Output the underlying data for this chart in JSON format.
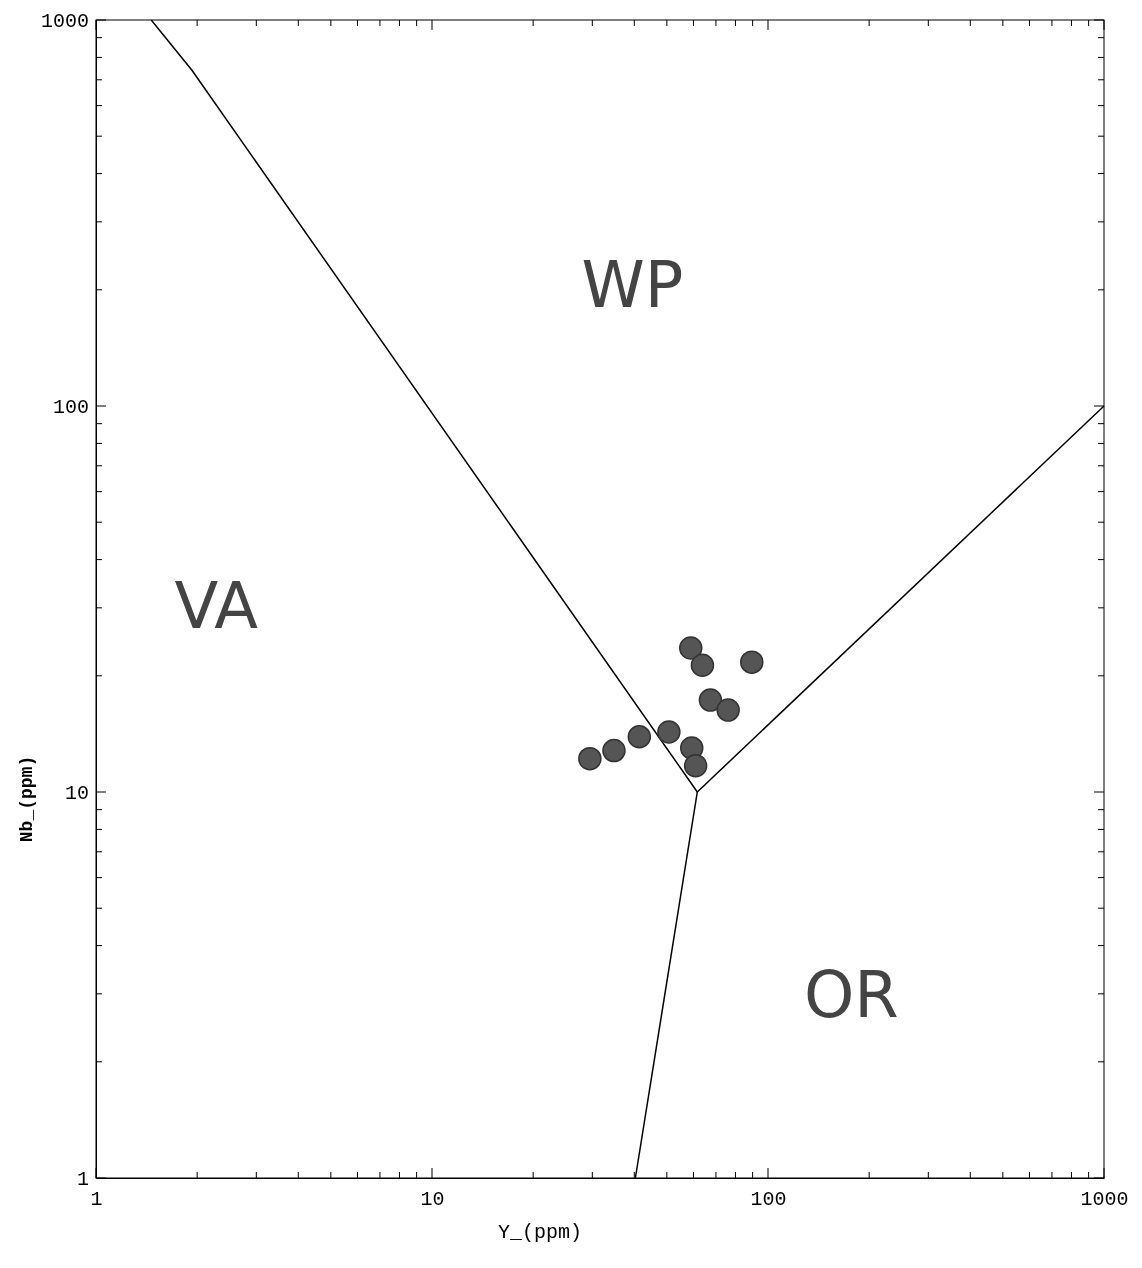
{
  "chart_data": {
    "type": "scatter",
    "xlabel": "Y_(ppm)",
    "ylabel": "Nb_(ppm)",
    "log": "xy",
    "xlim": [
      1,
      1000
    ],
    "ylim": [
      1,
      1000
    ],
    "xticks": [
      1,
      {
        "value": 2,
        "label": null
      },
      {
        "value": 3,
        "label": null
      },
      {
        "value": 4,
        "label": null
      },
      {
        "value": 5,
        "label": null
      },
      {
        "value": 6,
        "label": null
      },
      {
        "value": 7,
        "label": null
      },
      {
        "value": 8,
        "label": null
      },
      {
        "value": 9,
        "label": null
      },
      10,
      {
        "value": 20,
        "label": null
      },
      {
        "value": 30,
        "label": null
      },
      {
        "value": 40,
        "label": null
      },
      {
        "value": 50,
        "label": null
      },
      {
        "value": 60,
        "label": null
      },
      {
        "value": 70,
        "label": null
      },
      {
        "value": 80,
        "label": null
      },
      {
        "value": 90,
        "label": null
      },
      100,
      {
        "value": 200,
        "label": null
      },
      {
        "value": 300,
        "label": null
      },
      {
        "value": 400,
        "label": null
      },
      {
        "value": 500,
        "label": null
      },
      {
        "value": 600,
        "label": null
      },
      {
        "value": 700,
        "label": null
      },
      {
        "value": 800,
        "label": null
      },
      {
        "value": 900,
        "label": null
      },
      1000
    ],
    "yticks": [
      1,
      {
        "value": 2,
        "label": null
      },
      {
        "value": 3,
        "label": null
      },
      {
        "value": 4,
        "label": null
      },
      {
        "value": 5,
        "label": null
      },
      {
        "value": 6,
        "label": null
      },
      {
        "value": 7,
        "label": null
      },
      {
        "value": 8,
        "label": null
      },
      {
        "value": 9,
        "label": null
      },
      10,
      {
        "value": 20,
        "label": null
      },
      {
        "value": 30,
        "label": null
      },
      {
        "value": 40,
        "label": null
      },
      {
        "value": 50,
        "label": null
      },
      {
        "value": 60,
        "label": null
      },
      {
        "value": 70,
        "label": null
      },
      {
        "value": 80,
        "label": null
      },
      {
        "value": 90,
        "label": null
      },
      100,
      {
        "value": 200,
        "label": null
      },
      {
        "value": 300,
        "label": null
      },
      {
        "value": 400,
        "label": null
      },
      {
        "value": 500,
        "label": null
      },
      {
        "value": 600,
        "label": null
      },
      {
        "value": 700,
        "label": null
      },
      {
        "value": 800,
        "label": null
      },
      {
        "value": 900,
        "label": null
      },
      1000
    ],
    "grid": false,
    "series": [
      {
        "color": "#555555",
        "marker": "circle",
        "x": [
          29.5,
          34.8,
          41.4,
          50.7,
          58.9,
          63.8,
          89.5,
          67.4,
          76.1,
          59.3,
          60.9
        ],
        "values": [
          12.2,
          12.8,
          13.9,
          14.3,
          23.6,
          21.3,
          21.7,
          17.3,
          16.3,
          13.0,
          11.7
        ]
      },
      {
        "type": "line",
        "color": "#000000",
        "marker": "none",
        "line_style": "solid",
        "x": [
          1.46,
          1.93,
          61.6
        ],
        "values": [
          1000,
          741,
          10
        ]
      },
      {
        "type": "line",
        "color": "#000000",
        "marker": "none",
        "line_style": "solid",
        "x": [
          61.6,
          1000
        ],
        "values": [
          10,
          100
        ]
      },
      {
        "type": "line",
        "color": "#000000",
        "marker": "none",
        "line_style": "solid",
        "x": [
          61.6,
          40.3
        ],
        "values": [
          10,
          1
        ]
      }
    ],
    "annotations": [
      "WP",
      "VA",
      "OR"
    ]
  }
}
